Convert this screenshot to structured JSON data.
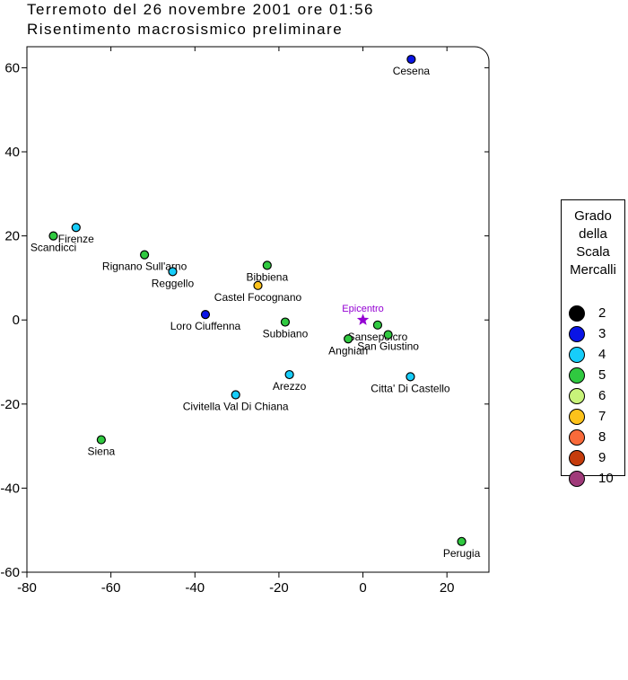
{
  "title_line1": "Terremoto del 26 novembre 2001 ore 01:56",
  "title_line2": "Risentimento macrosismico preliminare",
  "legend": {
    "title_lines": [
      "Grado",
      "della",
      "Scala",
      "Mercalli"
    ],
    "items": [
      {
        "grade": "2",
        "color": "#000000"
      },
      {
        "grade": "3",
        "color": "#0a14e6"
      },
      {
        "grade": "4",
        "color": "#17cdfa"
      },
      {
        "grade": "5",
        "color": "#30c940"
      },
      {
        "grade": "6",
        "color": "#c8f37a"
      },
      {
        "grade": "7",
        "color": "#fdc21b"
      },
      {
        "grade": "8",
        "color": "#f96a3a"
      },
      {
        "grade": "9",
        "color": "#c53c0c"
      },
      {
        "grade": "10",
        "color": "#a03a7a"
      }
    ]
  },
  "chart_data": {
    "type": "scatter",
    "title": "Terremoto del 26 novembre 2001 ore 01:56",
    "subtitle": "Risentimento macrosismico preliminare",
    "xlim": [
      -80,
      30
    ],
    "ylim": [
      -60,
      65
    ],
    "xticks": [
      -80,
      -60,
      -40,
      -20,
      0,
      20
    ],
    "yticks": [
      -60,
      -40,
      -20,
      0,
      20,
      40,
      60
    ],
    "epicenter": {
      "label": "Epicentro",
      "x": 0,
      "y": 0,
      "color": "#9400d3"
    },
    "points": [
      {
        "name": "Cesena",
        "x": 11.5,
        "y": 62,
        "grade": 3
      },
      {
        "name": "Firenze",
        "x": -68.3,
        "y": 22,
        "grade": 4
      },
      {
        "name": "Scandicci",
        "x": -73.7,
        "y": 20,
        "grade": 5
      },
      {
        "name": "Rignano Sull'arno",
        "x": -52,
        "y": 15.5,
        "grade": 5
      },
      {
        "name": "Reggello",
        "x": -45.3,
        "y": 11.5,
        "grade": 4
      },
      {
        "name": "Bibbiena",
        "x": -22.8,
        "y": 13,
        "grade": 5
      },
      {
        "name": "Castel Focognano",
        "x": -25,
        "y": 8.2,
        "grade": 7
      },
      {
        "name": "Loro Ciuffenna",
        "x": -37.5,
        "y": 1.3,
        "grade": 3
      },
      {
        "name": "Subbiano",
        "x": -18.5,
        "y": -0.5,
        "grade": 5
      },
      {
        "name": "Sansepolcro",
        "x": 3.5,
        "y": -1.2,
        "grade": 5
      },
      {
        "name": "San Giustino",
        "x": 6,
        "y": -3.5,
        "grade": 5
      },
      {
        "name": "Anghiari",
        "x": -3.5,
        "y": -4.5,
        "grade": 5
      },
      {
        "name": "Arezzo",
        "x": -17.5,
        "y": -13,
        "grade": 4
      },
      {
        "name": "Citta' Di Castello",
        "x": 11.3,
        "y": -13.5,
        "grade": 4
      },
      {
        "name": "Civitella Val Di Chiana",
        "x": -30.3,
        "y": -17.8,
        "grade": 4
      },
      {
        "name": "Siena",
        "x": -62.3,
        "y": -28.5,
        "grade": 5
      },
      {
        "name": "Perugia",
        "x": 23.5,
        "y": -52.7,
        "grade": 5
      }
    ]
  }
}
